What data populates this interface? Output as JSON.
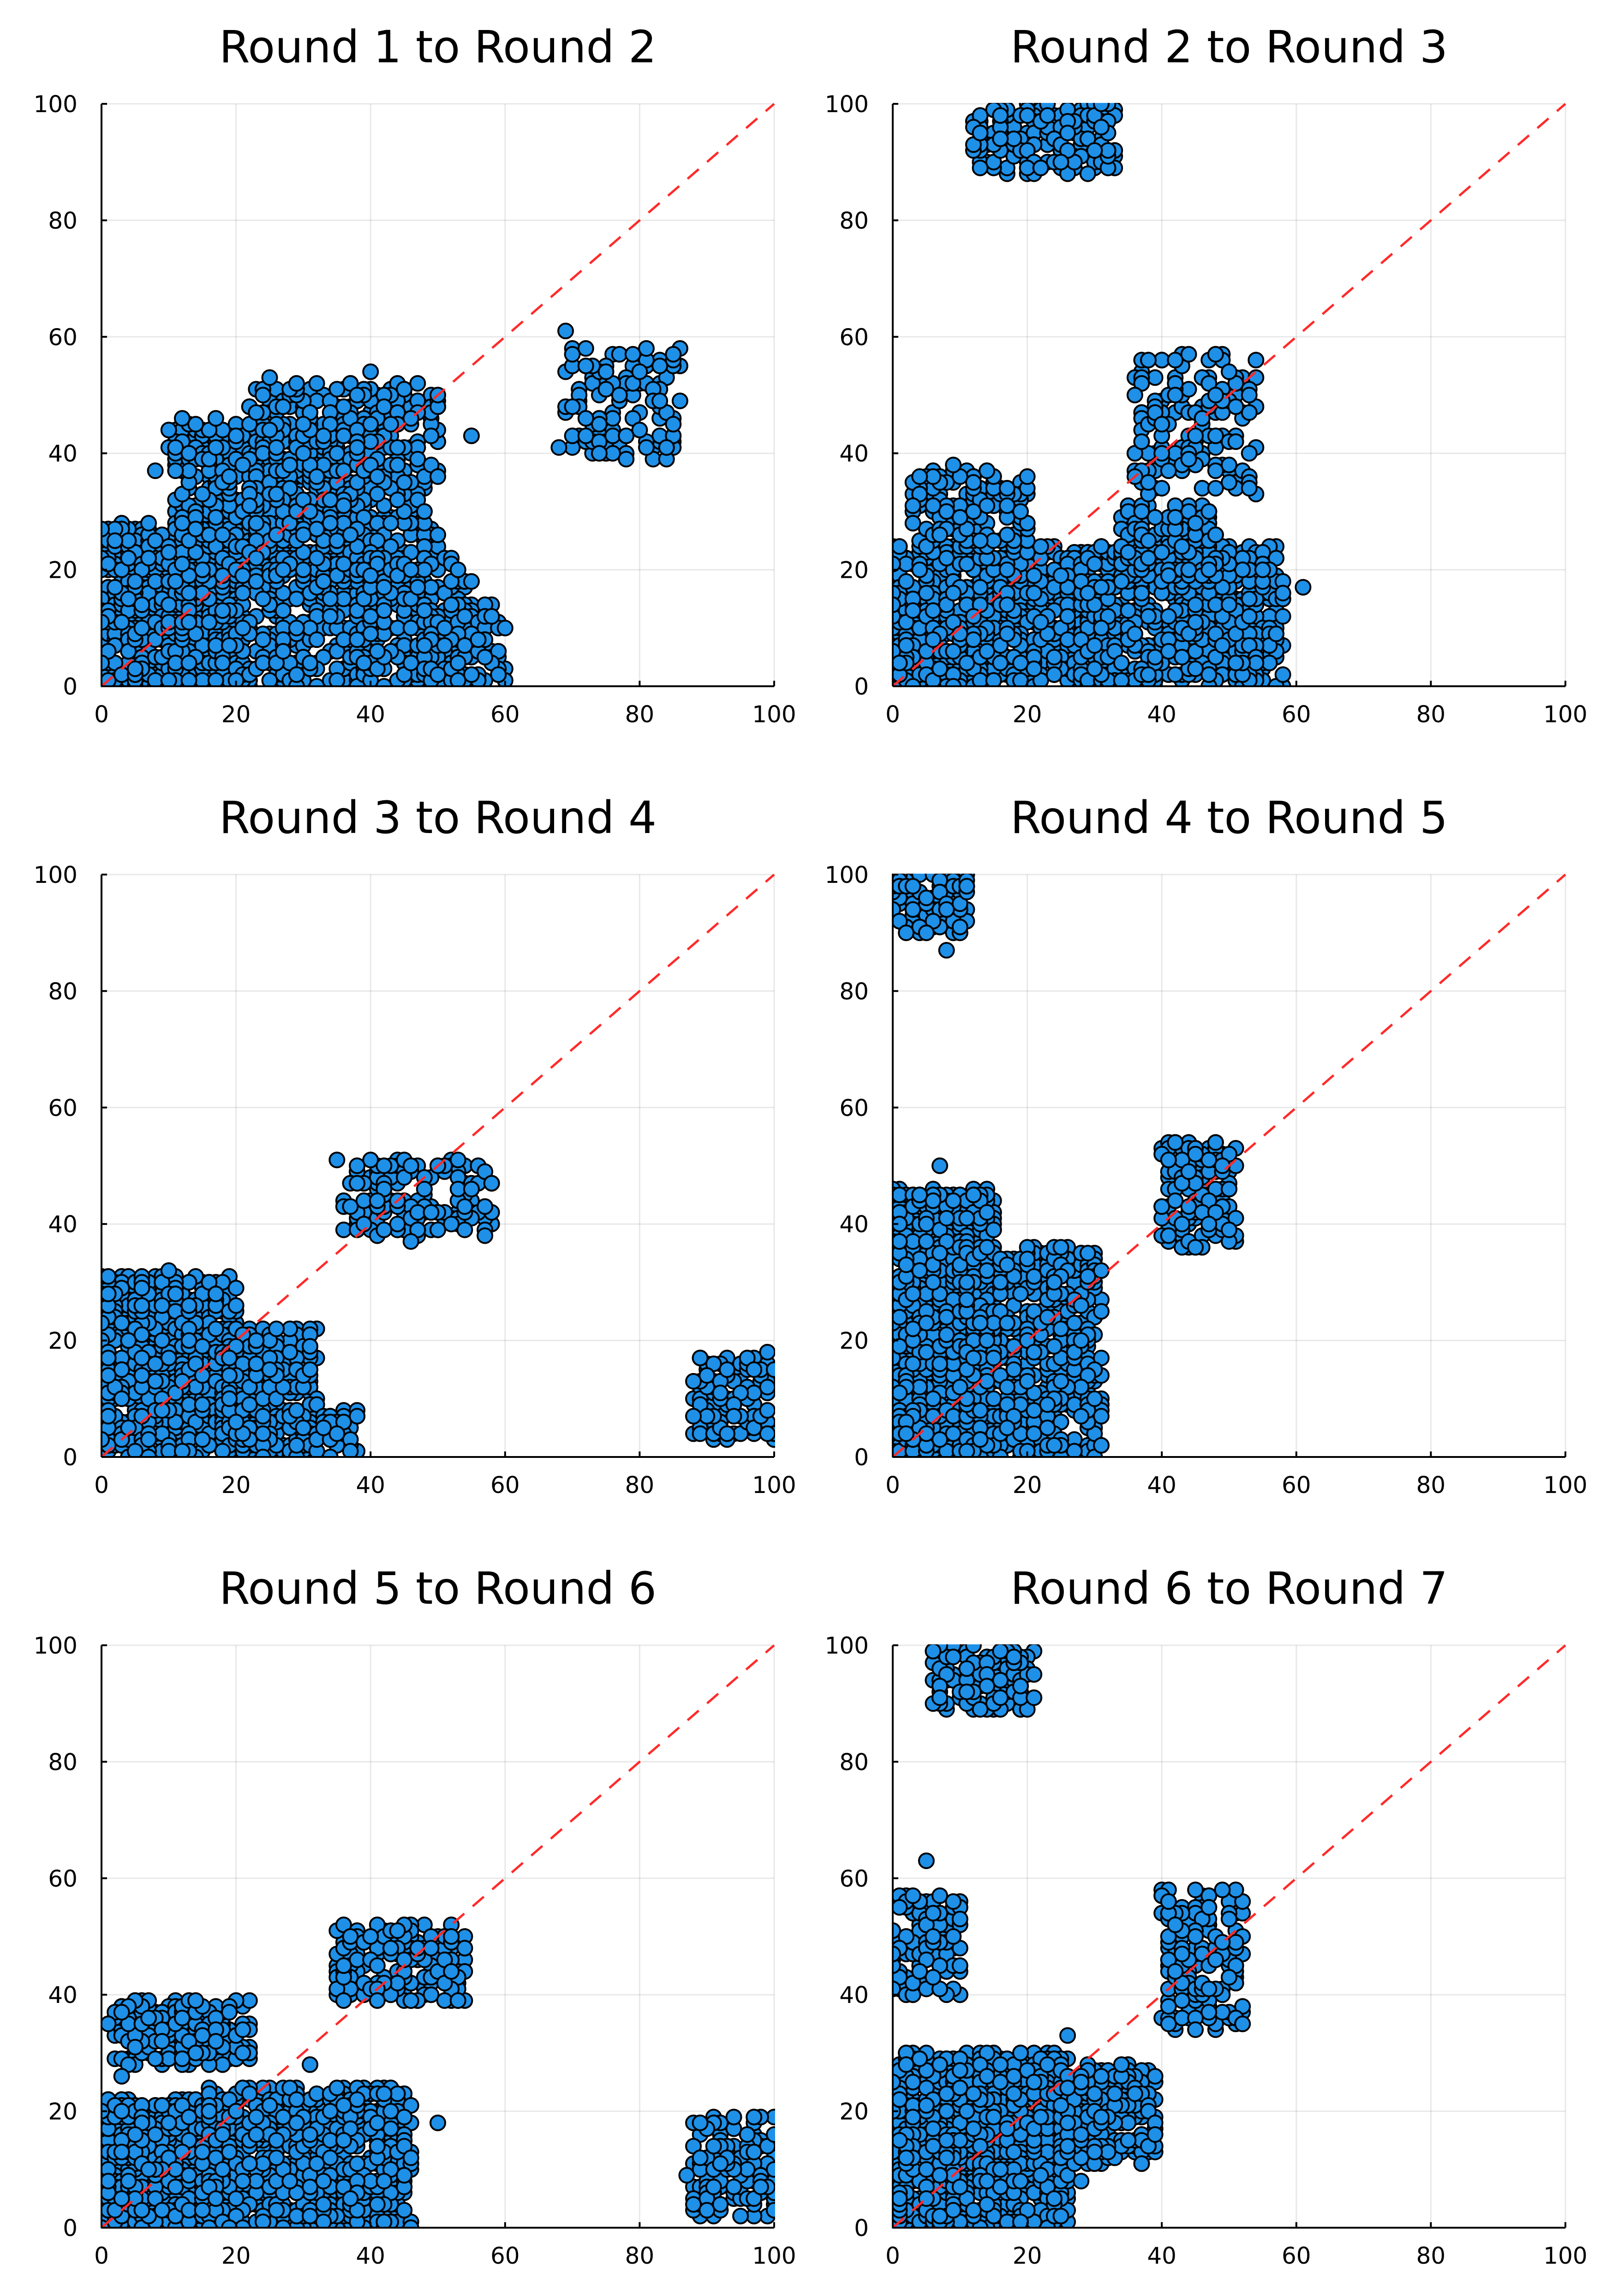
{
  "figure": {
    "point_color": "#1e90e8",
    "point_edge_color": "#000000",
    "reference_line_color": "#ff2a2a"
  },
  "chart_data": [
    {
      "type": "scatter",
      "title": "Round 1 to Round 2",
      "xlabel": "",
      "ylabel": "",
      "xlim": [
        0,
        100
      ],
      "ylim": [
        0,
        100
      ],
      "xticks": [
        "0",
        "20",
        "40",
        "60",
        "80",
        "100"
      ],
      "yticks": [
        "0",
        "20",
        "40",
        "60",
        "80",
        "100"
      ],
      "grid": true,
      "reference_line": {
        "from": [
          0,
          0
        ],
        "to": [
          100,
          100
        ],
        "style": "dashed"
      },
      "clusters": [
        {
          "x": [
            0,
            20
          ],
          "y": [
            0,
            28
          ],
          "n": 550
        },
        {
          "x": [
            10,
            40
          ],
          "y": [
            0,
            45
          ],
          "n": 900
        },
        {
          "x": [
            22,
            50
          ],
          "y": [
            18,
            52
          ],
          "n": 500
        },
        {
          "x": [
            38,
            55
          ],
          "y": [
            0,
            22
          ],
          "n": 220
        },
        {
          "x": [
            48,
            60
          ],
          "y": [
            0,
            14
          ],
          "n": 90
        },
        {
          "x": [
            68,
            86
          ],
          "y": [
            39,
            58
          ],
          "n": 110
        }
      ],
      "points": [
        [
          25,
          53
        ],
        [
          69,
          61
        ],
        [
          17,
          46
        ],
        [
          12,
          46
        ],
        [
          40,
          54
        ],
        [
          8,
          37
        ],
        [
          55,
          43
        ],
        [
          78,
          39
        ],
        [
          84,
          41
        ]
      ]
    },
    {
      "type": "scatter",
      "title": "Round 2 to Round 3",
      "xlabel": "",
      "ylabel": "",
      "xlim": [
        0,
        100
      ],
      "ylim": [
        0,
        100
      ],
      "xticks": [
        "0",
        "20",
        "40",
        "60",
        "80",
        "100"
      ],
      "yticks": [
        "0",
        "20",
        "40",
        "60",
        "80",
        "100"
      ],
      "grid": true,
      "reference_line": {
        "from": [
          0,
          0
        ],
        "to": [
          100,
          100
        ],
        "style": "dashed"
      },
      "clusters": [
        {
          "x": [
            0,
            30
          ],
          "y": [
            0,
            24
          ],
          "n": 800
        },
        {
          "x": [
            28,
            58
          ],
          "y": [
            0,
            24
          ],
          "n": 600
        },
        {
          "x": [
            34,
            48
          ],
          "y": [
            18,
            31
          ],
          "n": 150
        },
        {
          "x": [
            3,
            20
          ],
          "y": [
            24,
            37
          ],
          "n": 140
        },
        {
          "x": [
            36,
            54
          ],
          "y": [
            33,
            57
          ],
          "n": 150
        },
        {
          "x": [
            12,
            33
          ],
          "y": [
            88,
            100
          ],
          "n": 160
        }
      ],
      "points": [
        [
          61,
          17
        ],
        [
          13,
          95
        ],
        [
          20,
          89
        ],
        [
          22,
          89
        ],
        [
          25,
          90
        ],
        [
          48,
          57
        ],
        [
          44,
          57
        ],
        [
          58,
          16
        ],
        [
          9,
          38
        ]
      ]
    },
    {
      "type": "scatter",
      "title": "Round 3 to Round 4",
      "xlabel": "",
      "ylabel": "",
      "xlim": [
        0,
        100
      ],
      "ylim": [
        0,
        100
      ],
      "xticks": [
        "0",
        "20",
        "40",
        "60",
        "80",
        "100"
      ],
      "yticks": [
        "0",
        "20",
        "40",
        "60",
        "80",
        "100"
      ],
      "grid": true,
      "reference_line": {
        "from": [
          0,
          0
        ],
        "to": [
          100,
          100
        ],
        "style": "dashed"
      },
      "clusters": [
        {
          "x": [
            0,
            20
          ],
          "y": [
            0,
            31
          ],
          "n": 700
        },
        {
          "x": [
            18,
            32
          ],
          "y": [
            0,
            22
          ],
          "n": 320
        },
        {
          "x": [
            28,
            38
          ],
          "y": [
            0,
            8
          ],
          "n": 60
        },
        {
          "x": [
            36,
            58
          ],
          "y": [
            38,
            51
          ],
          "n": 160
        },
        {
          "x": [
            88,
            100
          ],
          "y": [
            3,
            17
          ],
          "n": 120
        }
      ],
      "points": [
        [
          35,
          51
        ],
        [
          46,
          37
        ],
        [
          10,
          32
        ],
        [
          20,
          29
        ],
        [
          99,
          18
        ],
        [
          52,
          40
        ],
        [
          88,
          7
        ]
      ]
    },
    {
      "type": "scatter",
      "title": "Round 4 to Round 5",
      "xlabel": "",
      "ylabel": "",
      "xlim": [
        0,
        100
      ],
      "ylim": [
        0,
        100
      ],
      "xticks": [
        "0",
        "20",
        "40",
        "60",
        "80",
        "100"
      ],
      "yticks": [
        "0",
        "20",
        "40",
        "60",
        "80",
        "100"
      ],
      "grid": true,
      "reference_line": {
        "from": [
          0,
          0
        ],
        "to": [
          100,
          100
        ],
        "style": "dashed"
      },
      "clusters": [
        {
          "x": [
            0,
            15
          ],
          "y": [
            0,
            46
          ],
          "n": 900
        },
        {
          "x": [
            10,
            31
          ],
          "y": [
            0,
            36
          ],
          "n": 500
        },
        {
          "x": [
            40,
            51
          ],
          "y": [
            36,
            54
          ],
          "n": 150
        },
        {
          "x": [
            0,
            11
          ],
          "y": [
            90,
            100
          ],
          "n": 110
        }
      ],
      "points": [
        [
          8,
          87
        ],
        [
          7,
          50
        ],
        [
          42,
          54
        ],
        [
          45,
          36
        ],
        [
          31,
          7
        ],
        [
          31,
          32
        ],
        [
          25,
          36
        ]
      ]
    },
    {
      "type": "scatter",
      "title": "Round 5 to Round 6",
      "xlabel": "",
      "ylabel": "",
      "xlim": [
        0,
        100
      ],
      "ylim": [
        0,
        100
      ],
      "xticks": [
        "0",
        "20",
        "40",
        "60",
        "80",
        "100"
      ],
      "yticks": [
        "0",
        "20",
        "40",
        "60",
        "80",
        "100"
      ],
      "grid": true,
      "reference_line": {
        "from": [
          0,
          0
        ],
        "to": [
          100,
          100
        ],
        "style": "dashed"
      },
      "clusters": [
        {
          "x": [
            0,
            20
          ],
          "y": [
            0,
            22
          ],
          "n": 700
        },
        {
          "x": [
            15,
            46
          ],
          "y": [
            0,
            24
          ],
          "n": 800
        },
        {
          "x": [
            2,
            22
          ],
          "y": [
            28,
            39
          ],
          "n": 180
        },
        {
          "x": [
            35,
            54
          ],
          "y": [
            39,
            52
          ],
          "n": 180
        },
        {
          "x": [
            88,
            100
          ],
          "y": [
            2,
            19
          ],
          "n": 140
        }
      ],
      "points": [
        [
          1,
          35
        ],
        [
          3,
          26
        ],
        [
          14,
          39
        ],
        [
          87,
          9
        ],
        [
          97,
          19
        ],
        [
          50,
          18
        ],
        [
          46,
          12
        ],
        [
          31,
          28
        ]
      ]
    },
    {
      "type": "scatter",
      "title": "Round 6 to Round 7",
      "xlabel": "",
      "ylabel": "",
      "xlim": [
        0,
        100
      ],
      "ylim": [
        0,
        100
      ],
      "xticks": [
        "0",
        "20",
        "40",
        "60",
        "80",
        "100"
      ],
      "yticks": [
        "0",
        "20",
        "40",
        "60",
        "80",
        "100"
      ],
      "grid": true,
      "reference_line": {
        "from": [
          0,
          0
        ],
        "to": [
          100,
          100
        ],
        "style": "dashed"
      },
      "clusters": [
        {
          "x": [
            0,
            26
          ],
          "y": [
            0,
            30
          ],
          "n": 1100
        },
        {
          "x": [
            25,
            39
          ],
          "y": [
            11,
            28
          ],
          "n": 220
        },
        {
          "x": [
            0,
            10
          ],
          "y": [
            40,
            57
          ],
          "n": 120
        },
        {
          "x": [
            40,
            52
          ],
          "y": [
            34,
            58
          ],
          "n": 160
        },
        {
          "x": [
            6,
            21
          ],
          "y": [
            89,
            100
          ],
          "n": 120
        }
      ],
      "points": [
        [
          5,
          63
        ],
        [
          7,
          91
        ],
        [
          13,
          89
        ],
        [
          45,
          58
        ],
        [
          45,
          34
        ],
        [
          26,
          33
        ],
        [
          28,
          8
        ],
        [
          39,
          16
        ]
      ]
    }
  ]
}
